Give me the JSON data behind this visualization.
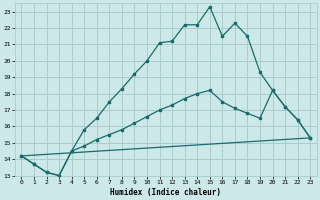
{
  "title": "",
  "xlabel": "Humidex (Indice chaleur)",
  "bg_color": "#cce8e8",
  "grid_color": "#aacccc",
  "line_color": "#1a6b6b",
  "xlim": [
    -0.5,
    23.5
  ],
  "ylim": [
    13.0,
    23.5
  ],
  "yticks": [
    13,
    14,
    15,
    16,
    17,
    18,
    19,
    20,
    21,
    22,
    23
  ],
  "xticks": [
    0,
    1,
    2,
    3,
    4,
    5,
    6,
    7,
    8,
    9,
    10,
    11,
    12,
    13,
    14,
    15,
    16,
    17,
    18,
    19,
    20,
    21,
    22,
    23
  ],
  "line1_x": [
    0,
    1,
    2,
    3,
    4,
    5,
    6,
    7,
    8,
    9,
    10,
    11,
    12,
    13,
    14,
    15,
    16,
    17,
    18,
    19,
    20,
    21,
    22,
    23
  ],
  "line1_y": [
    14.2,
    13.7,
    13.2,
    13.0,
    14.5,
    15.8,
    16.5,
    17.5,
    18.3,
    19.2,
    20.0,
    21.1,
    21.2,
    22.2,
    22.2,
    23.3,
    21.5,
    22.3,
    21.5,
    19.3,
    18.2,
    17.2,
    16.4,
    15.3
  ],
  "line2_x": [
    0,
    1,
    2,
    3,
    4,
    5,
    6,
    7,
    8,
    9,
    10,
    11,
    12,
    13,
    14,
    15,
    16,
    17,
    18,
    19,
    20,
    21,
    22,
    23
  ],
  "line2_y": [
    14.2,
    13.7,
    13.2,
    13.0,
    14.5,
    14.8,
    15.2,
    15.5,
    15.8,
    16.2,
    16.6,
    17.0,
    17.3,
    17.7,
    18.0,
    18.2,
    17.5,
    17.1,
    16.8,
    16.5,
    18.2,
    17.2,
    16.4,
    15.3
  ],
  "line3_x": [
    0,
    23
  ],
  "line3_y": [
    14.2,
    15.3
  ]
}
